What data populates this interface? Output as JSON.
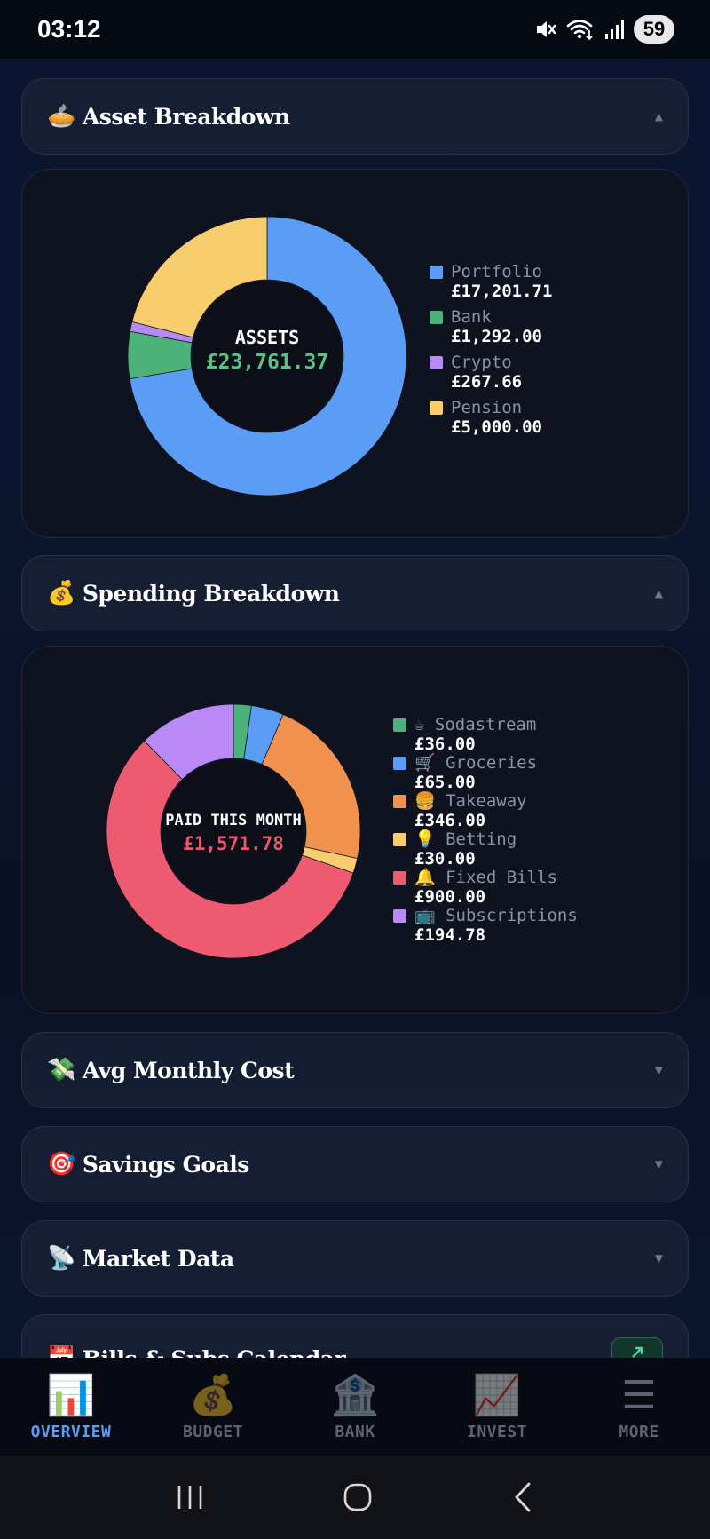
{
  "status_bar": {
    "time": "03:12",
    "battery": "59",
    "icons": [
      "mute-icon",
      "wifi-icon",
      "signal-icon",
      "battery-icon"
    ]
  },
  "sections": {
    "asset_breakdown": {
      "emoji": "🥧",
      "title": "Asset Breakdown",
      "chevron": "▲"
    },
    "spending_breakdown": {
      "emoji": "💰",
      "title": "Spending Breakdown",
      "chevron": "▲"
    },
    "avg_monthly_cost": {
      "emoji": "💸",
      "title": "Avg Monthly Cost",
      "chevron": "▼"
    },
    "savings_goals": {
      "emoji": "🎯",
      "title": "Savings Goals",
      "chevron": "▼"
    },
    "market_data": {
      "emoji": "📡",
      "title": "Market Data",
      "chevron": "▼"
    },
    "bills_calendar": {
      "emoji": "📅",
      "title": "Bills & Subs Calendar"
    }
  },
  "chart_data": [
    {
      "type": "pie",
      "center_label": "ASSETS",
      "center_value": "£23,761.37",
      "center_value_color": "#5cc08a",
      "legend_placement": "right",
      "slices": [
        {
          "label": "Portfolio",
          "display": "£17,201.71",
          "value": 17201.71,
          "color": "#5b9cf5"
        },
        {
          "label": "Bank",
          "display": "£1,292.00",
          "value": 1292.0,
          "color": "#4cb27a"
        },
        {
          "label": "Crypto",
          "display": "£267.66",
          "value": 267.66,
          "color": "#b98af5"
        },
        {
          "label": "Pension",
          "display": "£5,000.00",
          "value": 5000.0,
          "color": "#f8cd6e"
        }
      ]
    },
    {
      "type": "pie",
      "center_label": "PAID THIS MONTH",
      "center_value": "£1,571.78",
      "center_value_color": "#e8586b",
      "legend_placement": "right",
      "slices": [
        {
          "label": "☕ Sodastream",
          "display": "£36.00",
          "value": 36.0,
          "color": "#4cb27a"
        },
        {
          "label": "🛒 Groceries",
          "display": "£65.00",
          "value": 65.0,
          "color": "#5b9cf5"
        },
        {
          "label": "🍔 Takeaway",
          "display": "£346.00",
          "value": 346.0,
          "color": "#f0924e"
        },
        {
          "label": "💡 Betting",
          "display": "£30.00",
          "value": 30.0,
          "color": "#f8cd6e"
        },
        {
          "label": "🔔 Fixed Bills",
          "display": "£900.00",
          "value": 900.0,
          "color": "#ee5b70"
        },
        {
          "label": "📺 Subscriptions",
          "display": "£194.78",
          "value": 194.78,
          "color": "#b98af5"
        }
      ]
    }
  ],
  "bottom_nav": [
    {
      "icon": "📊",
      "label": "OVERVIEW",
      "active": true
    },
    {
      "icon": "💰",
      "label": "BUDGET",
      "active": false
    },
    {
      "icon": "🏦",
      "label": "BANK",
      "active": false
    },
    {
      "icon": "📈",
      "label": "INVEST",
      "active": false
    },
    {
      "icon": "☰",
      "label": "MORE",
      "active": false
    }
  ],
  "system_nav": [
    "recents-icon",
    "home-icon",
    "back-icon"
  ]
}
